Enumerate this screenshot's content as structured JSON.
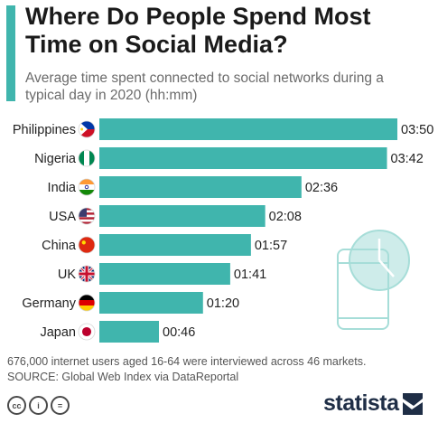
{
  "header": {
    "title": "Where Do People Spend Most Time on Social Media?",
    "subtitle": "Average time spent connected to social networks during a typical day in 2020 (hh:mm)"
  },
  "colors": {
    "bar": "#40b5ad",
    "accent": "#40b5ad",
    "illustration": "#a6ddd8",
    "brand": "#1f2e46"
  },
  "chart_data": {
    "type": "bar",
    "orientation": "horizontal",
    "categories": [
      "Philippines",
      "Nigeria",
      "India",
      "USA",
      "China",
      "UK",
      "Germany",
      "Japan"
    ],
    "values": [
      230,
      222,
      156,
      128,
      117,
      101,
      80,
      46
    ],
    "value_unit": "minutes",
    "labels": [
      "03:50",
      "03:42",
      "02:36",
      "02:08",
      "01:57",
      "01:41",
      "01:20",
      "00:46"
    ],
    "flag_icons": [
      "philippines-flag-icon",
      "nigeria-flag-icon",
      "india-flag-icon",
      "usa-flag-icon",
      "china-flag-icon",
      "uk-flag-icon",
      "germany-flag-icon",
      "japan-flag-icon"
    ],
    "xlim": [
      0,
      230
    ],
    "grid": false,
    "legend": "none"
  },
  "footer": {
    "note": "676,000 internet users aged 16-64 were interviewed across 46 markets.",
    "source": "SOURCE: Global Web Index via DataReportal",
    "license_icons": [
      "cc-icon",
      "attribution-icon",
      "no-derivatives-icon"
    ],
    "license_marks": [
      "cc",
      "i",
      "="
    ],
    "brand": "statista"
  }
}
